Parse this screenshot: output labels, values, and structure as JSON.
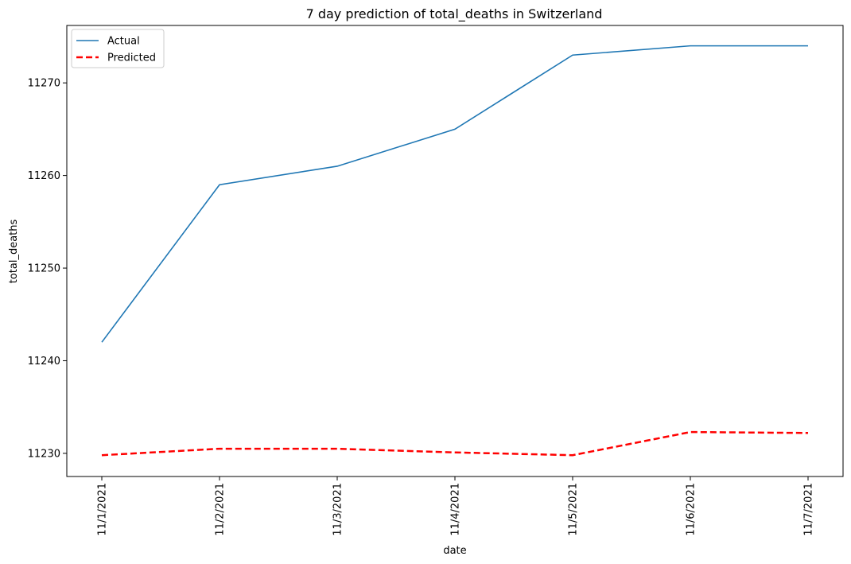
{
  "chart_data": {
    "type": "line",
    "title": "7 day prediction of total_deaths in Switzerland",
    "xlabel": "date",
    "ylabel": "total_deaths",
    "categories": [
      "11/1/2021",
      "11/2/2021",
      "11/3/2021",
      "11/4/2021",
      "11/5/2021",
      "11/6/2021",
      "11/7/2021"
    ],
    "yticks": [
      11230,
      11240,
      11250,
      11260,
      11270
    ],
    "ylim": [
      11227.5,
      11276.2
    ],
    "series": [
      {
        "name": "Actual",
        "color": "#1f77b4",
        "style": "solid",
        "values": [
          11242,
          11259,
          11261,
          11265,
          11273,
          11274,
          11274
        ]
      },
      {
        "name": "Predicted",
        "color": "#ff0000",
        "style": "dashed",
        "values": [
          11229.8,
          11230.5,
          11230.5,
          11230.1,
          11229.8,
          11232.3,
          11232.2
        ]
      }
    ],
    "legend_position": "top-left",
    "grid": false
  }
}
